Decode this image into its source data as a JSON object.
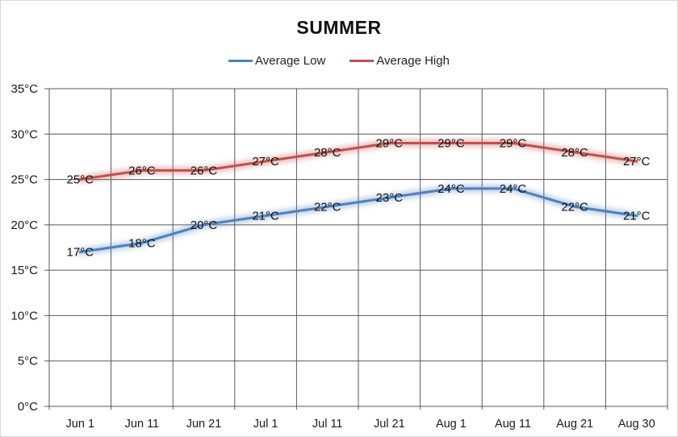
{
  "title": "SUMMER",
  "chart_data": {
    "type": "line",
    "title": "SUMMER",
    "xlabel": "",
    "ylabel": "",
    "categories": [
      "Jun 1",
      "Jun 11",
      "Jun 21",
      "Jul 1",
      "Jul 11",
      "Jul 21",
      "Aug 1",
      "Aug 11",
      "Aug 21",
      "Aug 30"
    ],
    "series": [
      {
        "name": "Average Low",
        "color": "#4F81BD",
        "values": [
          17,
          18,
          20,
          21,
          22,
          23,
          24,
          24,
          22,
          21
        ],
        "labels": [
          "17°C",
          "18°C",
          "20°C",
          "21°C",
          "22°C",
          "23°C",
          "24°C",
          "24°C",
          "22°C",
          "21°C"
        ]
      },
      {
        "name": "Average High",
        "color": "#C0504D",
        "values": [
          25,
          26,
          26,
          27,
          28,
          29,
          29,
          29,
          28,
          27
        ],
        "labels": [
          "25°C",
          "26°C",
          "26°C",
          "27°C",
          "28°C",
          "29°C",
          "29°C",
          "29°C",
          "28°C",
          "27°C"
        ]
      }
    ],
    "ylim": [
      0,
      35
    ],
    "ytick_values": [
      0,
      5,
      10,
      15,
      20,
      25,
      30,
      35
    ],
    "ytick_labels": [
      "0°C",
      "5°C",
      "10°C",
      "15°C",
      "20°C",
      "25°C",
      "30°C",
      "35°C"
    ],
    "grid": true,
    "legend_position": "top"
  },
  "colors": {
    "grid": "#595959",
    "tick_text": "#1a1a1a",
    "data_label_text": "#111111",
    "frame_border": "#d9d9d9",
    "background": "#ffffff"
  }
}
